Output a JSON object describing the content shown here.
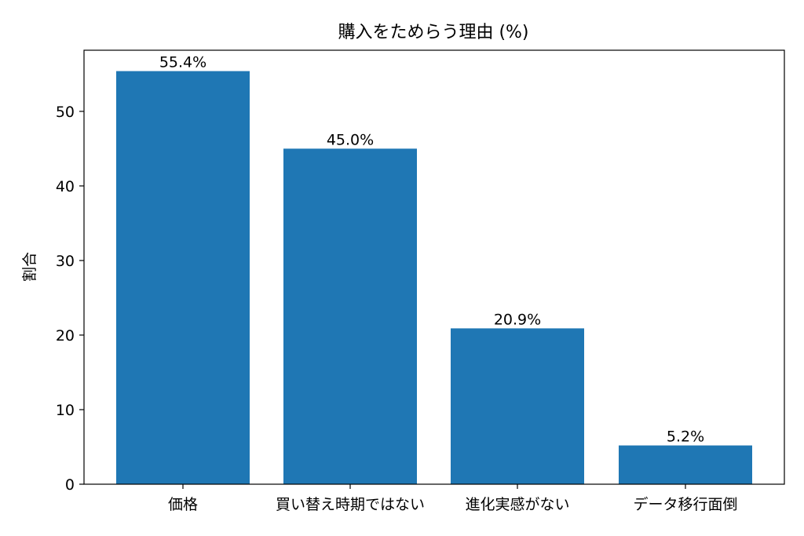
{
  "chart_data": {
    "type": "bar",
    "title": "購入をためらう理由 (%)",
    "xlabel": "",
    "ylabel": "割合",
    "categories": [
      "価格",
      "買い替え時期ではない",
      "進化実感がない",
      "データ移行面倒"
    ],
    "values": [
      55.4,
      45.0,
      20.9,
      5.2
    ],
    "value_labels": [
      "55.4%",
      "45.0%",
      "20.9%",
      "5.2%"
    ],
    "yticks": [
      0,
      10,
      20,
      30,
      40,
      50
    ],
    "ylim": [
      0,
      58.2
    ],
    "grid": false,
    "bar_color": "#1f77b4"
  }
}
